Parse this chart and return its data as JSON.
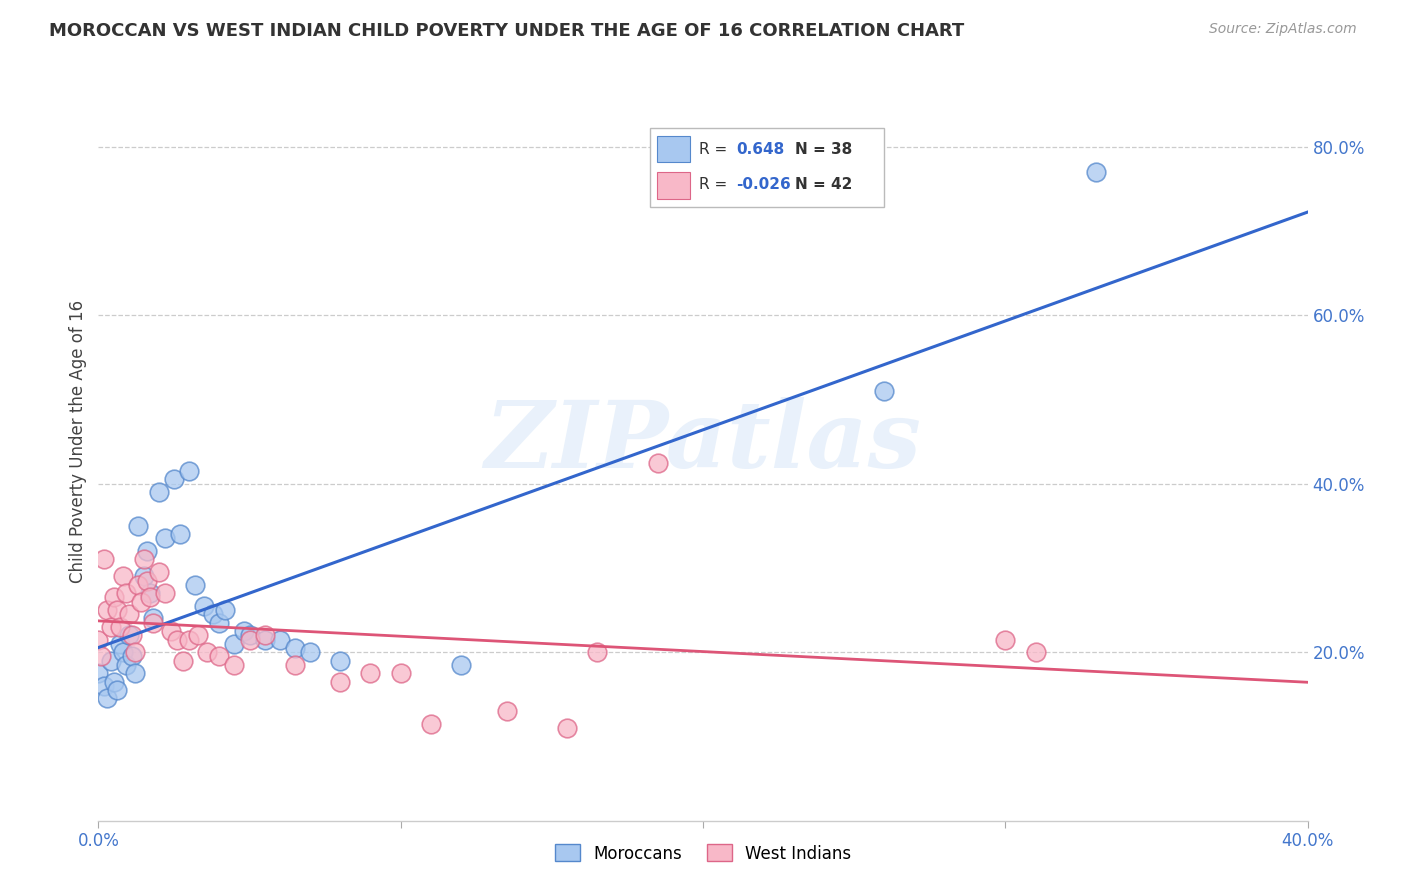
{
  "title": "MOROCCAN VS WEST INDIAN CHILD POVERTY UNDER THE AGE OF 16 CORRELATION CHART",
  "source": "Source: ZipAtlas.com",
  "ylabel": "Child Poverty Under the Age of 16",
  "xlim": [
    0.0,
    0.4
  ],
  "ylim": [
    0.0,
    0.9
  ],
  "xtick_vals": [
    0.0,
    0.1,
    0.2,
    0.3,
    0.4
  ],
  "xtick_labels": [
    "0.0%",
    "",
    "",
    "",
    "40.0%"
  ],
  "ytick_right_vals": [
    0.2,
    0.4,
    0.6,
    0.8
  ],
  "ytick_right_labels": [
    "20.0%",
    "40.0%",
    "60.0%",
    "80.0%"
  ],
  "grid_color": "#cccccc",
  "background_color": "#ffffff",
  "moroccan_fill": "#a8c8f0",
  "west_indian_fill": "#f8b8c8",
  "moroccan_edge": "#5588cc",
  "west_indian_edge": "#dd6688",
  "moroccan_line_color": "#3366cc",
  "west_indian_line_color": "#dd5577",
  "moroccan_R": 0.648,
  "moroccan_N": 38,
  "west_indian_R": -0.026,
  "west_indian_N": 42,
  "watermark_text": "ZIPatlas",
  "moroccan_x": [
    0.0,
    0.002,
    0.003,
    0.004,
    0.005,
    0.006,
    0.007,
    0.008,
    0.009,
    0.01,
    0.011,
    0.012,
    0.013,
    0.015,
    0.016,
    0.017,
    0.018,
    0.02,
    0.022,
    0.025,
    0.027,
    0.03,
    0.032,
    0.035,
    0.038,
    0.04,
    0.042,
    0.045,
    0.048,
    0.05,
    0.055,
    0.06,
    0.065,
    0.07,
    0.08,
    0.12,
    0.26,
    0.33
  ],
  "moroccan_y": [
    0.175,
    0.16,
    0.145,
    0.19,
    0.165,
    0.155,
    0.21,
    0.2,
    0.185,
    0.22,
    0.195,
    0.175,
    0.35,
    0.29,
    0.32,
    0.27,
    0.24,
    0.39,
    0.335,
    0.405,
    0.34,
    0.415,
    0.28,
    0.255,
    0.245,
    0.235,
    0.25,
    0.21,
    0.225,
    0.22,
    0.215,
    0.215,
    0.205,
    0.2,
    0.19,
    0.185,
    0.51,
    0.77
  ],
  "west_indian_x": [
    0.0,
    0.001,
    0.002,
    0.003,
    0.004,
    0.005,
    0.006,
    0.007,
    0.008,
    0.009,
    0.01,
    0.011,
    0.012,
    0.013,
    0.014,
    0.015,
    0.016,
    0.017,
    0.018,
    0.02,
    0.022,
    0.024,
    0.026,
    0.028,
    0.03,
    0.033,
    0.036,
    0.04,
    0.045,
    0.05,
    0.055,
    0.065,
    0.08,
    0.09,
    0.1,
    0.11,
    0.135,
    0.155,
    0.165,
    0.185,
    0.3,
    0.31
  ],
  "west_indian_y": [
    0.215,
    0.195,
    0.31,
    0.25,
    0.23,
    0.265,
    0.25,
    0.23,
    0.29,
    0.27,
    0.245,
    0.22,
    0.2,
    0.28,
    0.26,
    0.31,
    0.285,
    0.265,
    0.235,
    0.295,
    0.27,
    0.225,
    0.215,
    0.19,
    0.215,
    0.22,
    0.2,
    0.195,
    0.185,
    0.215,
    0.22,
    0.185,
    0.165,
    0.175,
    0.175,
    0.115,
    0.13,
    0.11,
    0.2,
    0.425,
    0.215,
    0.2
  ]
}
